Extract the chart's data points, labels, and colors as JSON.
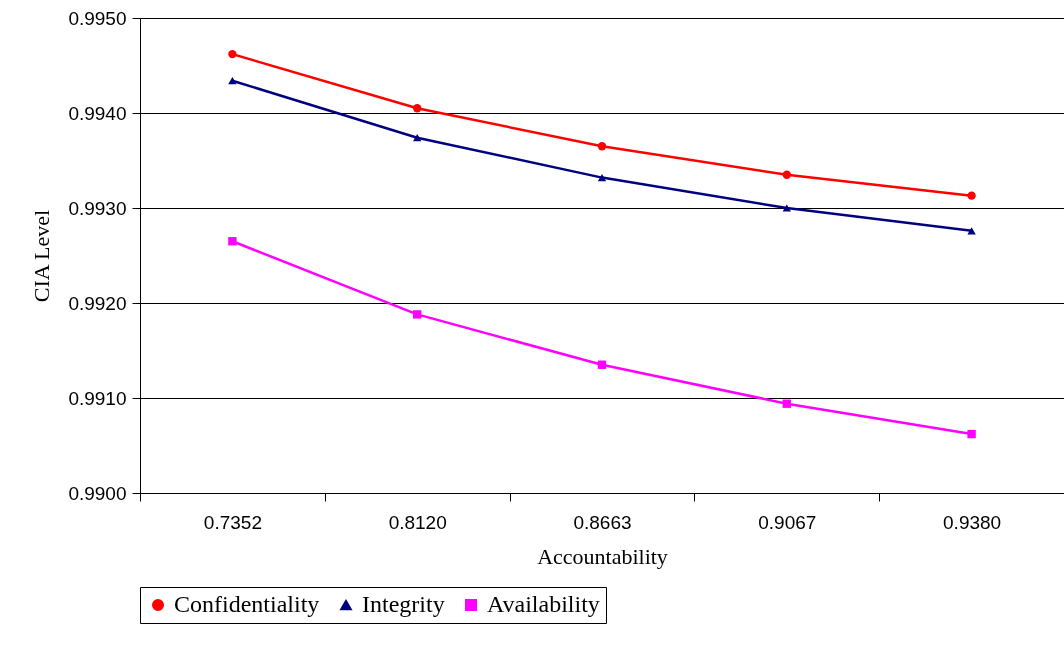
{
  "chart_data": {
    "type": "line",
    "xlabel": "Accountability",
    "ylabel": "CIA Level",
    "categories": [
      "0.7352",
      "0.8120",
      "0.8663",
      "0.9067",
      "0.9380"
    ],
    "series": [
      {
        "name": "Confidentiality",
        "color": "#ff0000",
        "marker": "circle",
        "values": [
          0.99462,
          0.99405,
          0.99365,
          0.99335,
          0.99313
        ]
      },
      {
        "name": "Integrity",
        "color": "#000080",
        "marker": "triangle",
        "values": [
          0.99434,
          0.99374,
          0.99332,
          0.993,
          0.99276
        ]
      },
      {
        "name": "Availability",
        "color": "#ff00ff",
        "marker": "square",
        "values": [
          0.99265,
          0.99188,
          0.99135,
          0.99094,
          0.99062
        ]
      }
    ],
    "ylim": [
      0.99,
      0.995
    ],
    "yticks": [
      {
        "value": 0.99,
        "label": "0.9900"
      },
      {
        "value": 0.991,
        "label": "0.9910"
      },
      {
        "value": 0.992,
        "label": "0.9920"
      },
      {
        "value": 0.993,
        "label": "0.9930"
      },
      {
        "value": 0.994,
        "label": "0.9940"
      },
      {
        "value": 0.995,
        "label": "0.9950"
      }
    ],
    "grid": "y",
    "legend": "bottom"
  }
}
